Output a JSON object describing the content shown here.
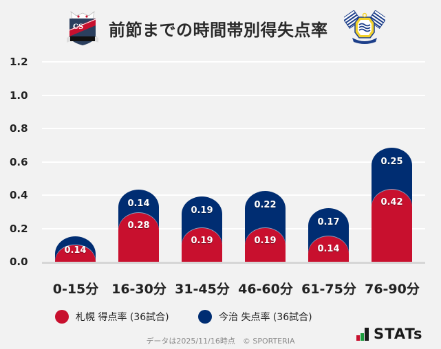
{
  "header": {
    "title": "前節までの時間帯別得失点率",
    "home_logo": "consadole-sapporo-crest-icon",
    "away_logo": "fc-imabari-crest-icon"
  },
  "colors": {
    "home": "#c8102e",
    "away": "#002d72",
    "background": "#f2f2f2",
    "grid": "#ffffff"
  },
  "chart_data": {
    "type": "bar",
    "stacked": true,
    "title": "前節までの時間帯別得失点率",
    "xlabel": "",
    "ylabel": "",
    "ylim": [
      0,
      1.2
    ],
    "yticks": [
      "0.0",
      "0.2",
      "0.4",
      "0.6",
      "0.8",
      "1.0",
      "1.2"
    ],
    "grid": true,
    "legend_position": "bottom",
    "categories": [
      "0-15分",
      "16-30分",
      "31-45分",
      "46-60分",
      "61-75分",
      "76-90分"
    ],
    "series": [
      {
        "name": "札幌 得点率 (36試合)",
        "color": "#c8102e",
        "values": [
          0.0,
          0.28,
          0.19,
          0.19,
          0.14,
          0.42
        ],
        "labels": [
          "",
          "0.28",
          "0.19",
          "0.19",
          "0.14",
          "0.42"
        ]
      },
      {
        "name": "今治 失点率 (36試合)",
        "color": "#002d72",
        "values": [
          0.14,
          0.14,
          0.19,
          0.22,
          0.17,
          0.25
        ],
        "labels": [
          "0.14",
          "0.14",
          "0.19",
          "0.22",
          "0.17",
          "0.25"
        ]
      }
    ]
  },
  "legend": [
    {
      "label": "札幌 得点率 (36試合)",
      "color": "#c8102e"
    },
    {
      "label": "今治 失点率 (36試合)",
      "color": "#002d72"
    }
  ],
  "footer": {
    "note": "データは2025/11/16時点　© SPORTERIA",
    "brand": "STATs"
  }
}
